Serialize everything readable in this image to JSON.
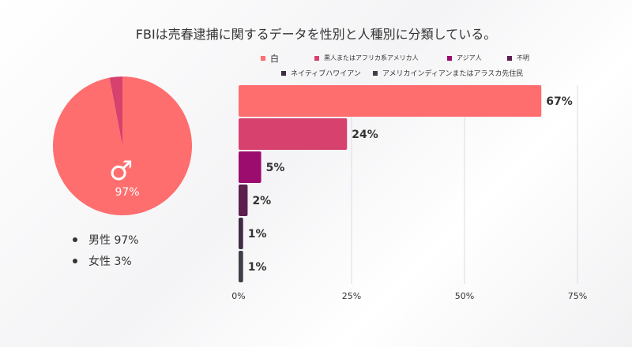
{
  "title": "FBIは売春逮捕に関するデータを性別と人種別に分類している。",
  "pie": {
    "slices": [
      {
        "label": "男性",
        "value": 97,
        "color": "#fe6e6e"
      },
      {
        "label": "女性",
        "value": 3,
        "color": "#d6416e"
      }
    ],
    "icon": "male-symbol-icon",
    "center_label": "97%",
    "legend": [
      {
        "label": "男性 97%"
      },
      {
        "label": "女性 3%"
      }
    ]
  },
  "chart_data": {
    "type": "bar",
    "orientation": "horizontal",
    "categories": [
      "白",
      "黒人またはアフリカ系アメリカ人",
      "アジア人",
      "不明",
      "ネイティブハワイアン",
      "アメリカインディアンまたはアラスカ先住民"
    ],
    "values": [
      67,
      24,
      5,
      2,
      1,
      1
    ],
    "value_labels": [
      "67%",
      "24%",
      "5%",
      "2%",
      "1%",
      "1%"
    ],
    "colors": [
      "#fe6e6e",
      "#d6416e",
      "#9c0c6e",
      "#5c1f4e",
      "#3f2b45",
      "#3f3f4a"
    ],
    "xlim": [
      0,
      75
    ],
    "xticks": [
      "0%",
      "25%",
      "50%",
      "75%"
    ],
    "grid": true,
    "legend_position": "top"
  }
}
